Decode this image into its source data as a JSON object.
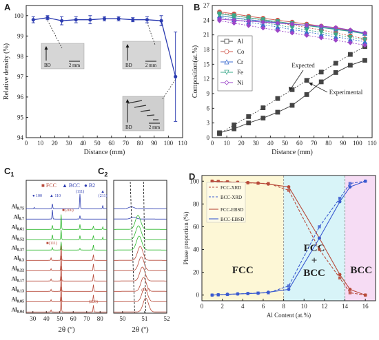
{
  "panels": {
    "a": "A",
    "b": "B",
    "c1": "C",
    "c1_sub": "1",
    "c2": "C",
    "c2_sub": "2",
    "d": "D"
  },
  "chart_data": [
    {
      "id": "A",
      "type": "line",
      "ylabel": "Relative density (%)",
      "xlabel": "Distance (mm)",
      "xlim": [
        0,
        110
      ],
      "ylim": [
        94,
        100.5
      ],
      "xticks": [
        0,
        10,
        20,
        30,
        40,
        50,
        60,
        70,
        80,
        90,
        100,
        110
      ],
      "yticks": [
        94,
        95,
        96,
        97,
        98,
        99,
        100
      ],
      "color": "#2b3bb0",
      "x": [
        5,
        15,
        25,
        35,
        45,
        55,
        65,
        75,
        85,
        95,
        105
      ],
      "y": [
        99.8,
        99.9,
        99.75,
        99.8,
        99.8,
        99.85,
        99.85,
        99.8,
        99.8,
        99.75,
        97.0
      ],
      "err": [
        0.15,
        0.1,
        0.2,
        0.15,
        0.2,
        0.1,
        0.1,
        0.1,
        0.15,
        0.25,
        2.2
      ],
      "insets": [
        {
          "label": "BD",
          "scale": "2 mm"
        },
        {
          "label": "BD",
          "scale": "2 mm"
        },
        {
          "label": "BD",
          "scale": "2 mm"
        }
      ]
    },
    {
      "id": "B",
      "type": "line",
      "ylabel": "Composition(at.%)",
      "xlabel": "Distance (mm)",
      "xlim": [
        0,
        110
      ],
      "ylim": [
        0,
        27
      ],
      "xticks": [
        0,
        10,
        20,
        30,
        40,
        50,
        60,
        70,
        80,
        90,
        100,
        110
      ],
      "yticks": [
        0,
        3,
        6,
        9,
        12,
        15,
        18,
        21,
        24,
        27
      ],
      "x": [
        5,
        15,
        25,
        35,
        45,
        55,
        65,
        75,
        85,
        95,
        105
      ],
      "series": [
        {
          "name": "Al",
          "color": "#444444",
          "marker": "square",
          "exp": [
            1.0,
            1.8,
            3.0,
            4.0,
            5.2,
            6.6,
            8.8,
            11.4,
            13.3,
            14.8,
            15.8
          ],
          "expected": [
            0.8,
            2.6,
            4.3,
            6.1,
            8.0,
            9.8,
            11.7,
            13.4,
            15.2,
            17.0,
            18.6
          ]
        },
        {
          "name": "Co",
          "color": "#d0584c",
          "marker": "circle",
          "exp": [
            25.7,
            25.3,
            24.8,
            24.4,
            24.0,
            23.6,
            23.2,
            22.8,
            22.4,
            21.9,
            21.3
          ],
          "expected": [
            25.5,
            25.0,
            24.5,
            24.0,
            23.5,
            23.0,
            22.5,
            22.0,
            21.4,
            20.8,
            20.2
          ]
        },
        {
          "name": "Cr",
          "color": "#3a6bd0",
          "marker": "triangle",
          "exp": [
            24.9,
            24.5,
            24.1,
            23.8,
            23.5,
            23.2,
            22.9,
            22.6,
            22.2,
            21.8,
            21.3
          ],
          "expected": [
            24.6,
            24.1,
            23.6,
            23.1,
            22.6,
            22.1,
            21.6,
            21.1,
            20.6,
            20.1,
            19.6
          ]
        },
        {
          "name": "Fe",
          "color": "#3aa88a",
          "marker": "down",
          "exp": [
            25.3,
            24.9,
            24.5,
            24.1,
            23.7,
            23.3,
            22.9,
            22.5,
            22.1,
            21.7,
            21.2
          ],
          "expected": [
            25.0,
            24.5,
            24.0,
            23.5,
            23.0,
            22.5,
            22.0,
            21.5,
            21.0,
            20.5,
            20.0
          ]
        },
        {
          "name": "Ni",
          "color": "#9b45c8",
          "marker": "diamond",
          "exp": [
            24.2,
            24.0,
            23.8,
            23.6,
            23.4,
            23.2,
            23.0,
            22.8,
            22.5,
            22.0,
            21.4
          ],
          "expected": [
            23.9,
            23.4,
            22.9,
            22.4,
            21.9,
            21.4,
            20.9,
            20.4,
            19.9,
            19.4,
            18.9
          ]
        }
      ],
      "annotations": [
        "Expected",
        "Experimental"
      ]
    },
    {
      "id": "C1",
      "type": "line",
      "xlabel": "2θ (º)",
      "xlim": [
        25,
        85
      ],
      "xticks": [
        30,
        40,
        50,
        60,
        70,
        80
      ],
      "legend": [
        {
          "name": "FCC",
          "symbol": "■",
          "color": "#b84a3a"
        },
        {
          "name": "BCC",
          "symbol": "▲",
          "color": "#2b3bb0"
        },
        {
          "name": "B2",
          "symbol": "●",
          "color": "#2b3bb0"
        }
      ],
      "annotations": [
        "100",
        "110",
        "(111)",
        "(211)",
        "(200)",
        "(111)",
        "(220)"
      ],
      "samples": [
        {
          "label": "Al",
          "sub": "0.75",
          "color": "#2b3bb0",
          "phase": "BCC",
          "peaks": [
            [
              31,
              0.08
            ],
            [
              44.5,
              0.3
            ],
            [
              65,
              0.9
            ],
            [
              82,
              0.2
            ]
          ]
        },
        {
          "label": "Al",
          "sub": "0.7",
          "color": "#2b3bb0",
          "phase": "BCC",
          "peaks": [
            [
              44.5,
              0.55
            ],
            [
              65,
              0.2
            ]
          ]
        },
        {
          "label": "Al",
          "sub": "0.61",
          "color": "#2eb82e",
          "phase": "mixed",
          "peaks": [
            [
              44.5,
              0.25
            ],
            [
              51,
              0.9
            ],
            [
              65,
              0.3
            ],
            [
              75,
              0.2
            ],
            [
              82,
              0.15
            ]
          ]
        },
        {
          "label": "Al",
          "sub": "0.52",
          "color": "#2eb82e",
          "phase": "mixed",
          "peaks": [
            [
              44.5,
              0.3
            ],
            [
              51,
              0.6
            ],
            [
              65,
              0.25
            ],
            [
              75,
              0.25
            ],
            [
              82,
              0.15
            ]
          ]
        },
        {
          "label": "Al",
          "sub": "0.37",
          "color": "#2eb82e",
          "phase": "mixed",
          "peaks": [
            [
              44.5,
              0.15
            ],
            [
              51,
              0.5
            ],
            [
              65,
              0.1
            ],
            [
              75,
              0.3
            ]
          ]
        },
        {
          "label": "Al",
          "sub": "0.3",
          "color": "#b84a3a",
          "phase": "FCC",
          "peaks": [
            [
              43.5,
              0.15
            ],
            [
              51,
              0.9
            ],
            [
              75,
              0.35
            ]
          ]
        },
        {
          "label": "Al",
          "sub": "0.22",
          "color": "#b84a3a",
          "phase": "FCC",
          "peaks": [
            [
              43.5,
              0.12
            ],
            [
              51,
              0.9
            ],
            [
              75,
              0.4
            ]
          ]
        },
        {
          "label": "Al",
          "sub": "0.17",
          "color": "#b84a3a",
          "phase": "FCC",
          "peaks": [
            [
              43.5,
              0.12
            ],
            [
              51,
              0.9
            ],
            [
              75,
              0.4
            ]
          ]
        },
        {
          "label": "Al",
          "sub": "0.13",
          "color": "#b84a3a",
          "phase": "FCC",
          "peaks": [
            [
              43.5,
              0.12
            ],
            [
              51,
              0.9
            ],
            [
              75,
              0.4
            ]
          ]
        },
        {
          "label": "Al",
          "sub": "0.05",
          "color": "#b84a3a",
          "phase": "FCC",
          "peaks": [
            [
              43.5,
              0.12
            ],
            [
              51,
              0.9
            ],
            [
              75,
              0.4
            ]
          ]
        },
        {
          "label": "Al",
          "sub": "0.04",
          "color": "#b84a3a",
          "phase": "FCC",
          "peaks": [
            [
              43.5,
              0.12
            ],
            [
              51,
              0.9
            ],
            [
              75,
              0.4
            ]
          ]
        }
      ]
    },
    {
      "id": "C2",
      "type": "line",
      "xlabel": "2θ (º)",
      "xlim": [
        49.6,
        52
      ],
      "xticks": [
        50,
        51,
        52
      ],
      "annotations": [
        "(111)"
      ],
      "centers": [
        50.4,
        50.5,
        50.7,
        50.72,
        50.75,
        50.8,
        50.85,
        50.9,
        50.95,
        51.0,
        51.05
      ]
    },
    {
      "id": "D",
      "type": "line",
      "ylabel": "Phase proportion (%)",
      "xlabel": "Al Content (at.%)",
      "xlim": [
        0,
        17
      ],
      "ylim": [
        -5,
        105
      ],
      "xticks": [
        0,
        2,
        4,
        6,
        8,
        10,
        12,
        14,
        16
      ],
      "yticks": [
        0,
        20,
        40,
        60,
        80,
        100
      ],
      "regions": [
        {
          "label": "FCC",
          "from": 0,
          "to": 8,
          "color": "#fdf7d6"
        },
        {
          "label": "FCC\n+\nBCC",
          "from": 8,
          "to": 14,
          "color": "#d8f4f8"
        },
        {
          "label": "BCC",
          "from": 14,
          "to": 17,
          "color": "#f6dcf4"
        }
      ],
      "series": [
        {
          "name": "FCC-XRD",
          "color": "#b84a3a",
          "dash": true,
          "x": [
            1,
            1.6,
            2.5,
            3.5,
            4.5,
            5.5,
            6.5,
            8.5,
            11.5,
            13.5,
            14.5,
            16
          ],
          "y": [
            100,
            99.8,
            99.5,
            99,
            98.6,
            98.2,
            98,
            92,
            40,
            15,
            2,
            0
          ]
        },
        {
          "name": "BCC-XRD",
          "color": "#3a5ad0",
          "dash": true,
          "x": [
            1,
            1.6,
            2.5,
            3.5,
            4.5,
            5.5,
            6.5,
            8.5,
            11.5,
            13.5,
            14.5,
            16
          ],
          "y": [
            0,
            0.2,
            0.5,
            1,
            1.4,
            1.8,
            2,
            8,
            60,
            85,
            98,
            100
          ]
        },
        {
          "name": "FCC-EBSD",
          "color": "#b84a3a",
          "dash": false,
          "x": [
            1,
            1.6,
            2.5,
            3.5,
            4.5,
            5.5,
            6.5,
            8.5,
            11.5,
            13.5,
            14.5,
            16
          ],
          "y": [
            100,
            99.7,
            99.3,
            99,
            98.7,
            98.4,
            97.5,
            95,
            50,
            18,
            5,
            0
          ]
        },
        {
          "name": "BCC-EBSD",
          "color": "#3a5ad0",
          "dash": false,
          "x": [
            1,
            1.6,
            2.5,
            3.5,
            4.5,
            5.5,
            6.5,
            8.5,
            11.5,
            13.5,
            14.5,
            16
          ],
          "y": [
            0,
            0.3,
            0.7,
            1,
            1.3,
            1.6,
            2.5,
            5,
            50,
            82,
            95,
            100
          ]
        }
      ]
    }
  ]
}
